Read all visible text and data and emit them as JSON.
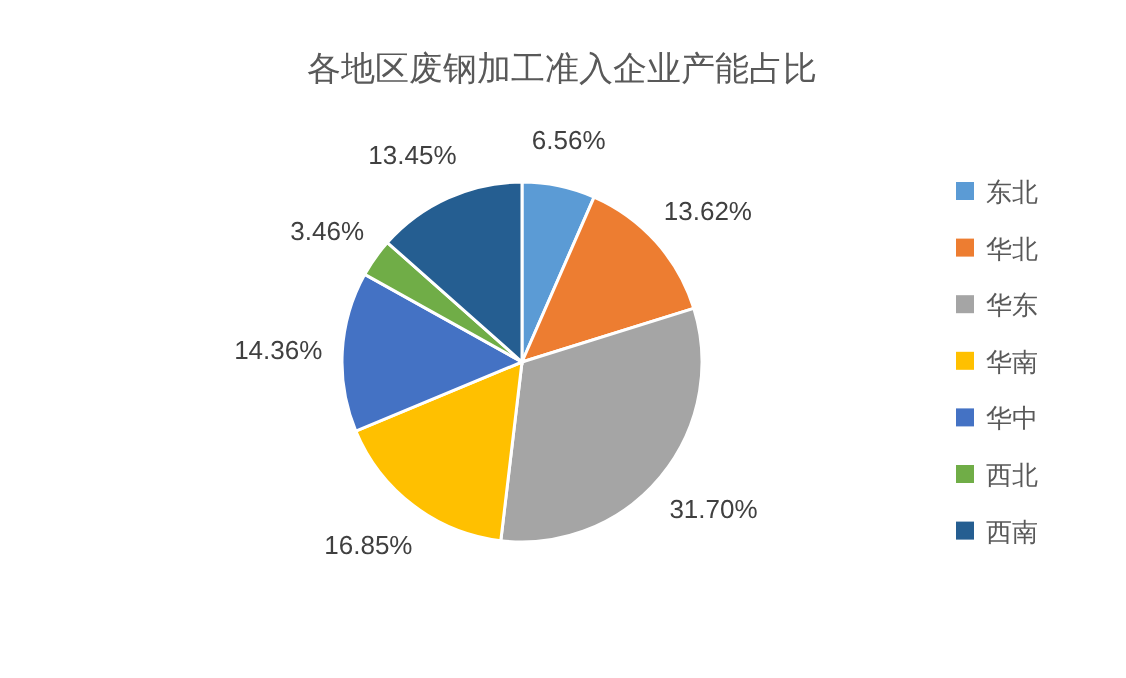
{
  "chart_data": {
    "type": "pie",
    "title": "各地区废钢加工准入企业产能占比",
    "categories": [
      "东北",
      "华北",
      "华东",
      "华南",
      "华中",
      "西北",
      "西南"
    ],
    "values": [
      6.56,
      13.62,
      31.7,
      16.85,
      14.36,
      3.46,
      13.45
    ],
    "value_labels": [
      "6.56%",
      "13.62%",
      "31.70%",
      "16.85%",
      "14.36%",
      "3.46%",
      "13.45%"
    ],
    "colors": [
      "#5b9bd5",
      "#ed7d31",
      "#a5a5a5",
      "#ffc000",
      "#4472c4",
      "#70ad47",
      "#255e91"
    ],
    "legend": "right"
  }
}
